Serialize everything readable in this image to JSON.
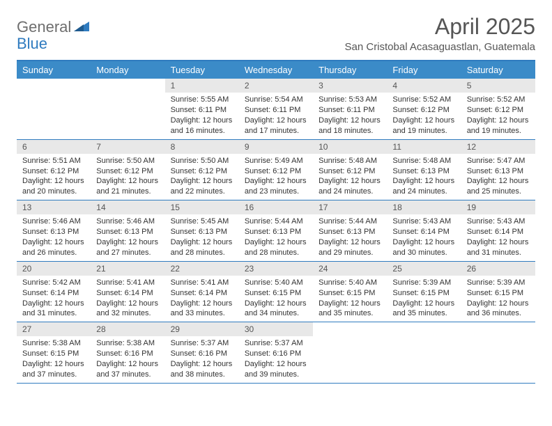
{
  "logo": {
    "part1": "General",
    "part2": "Blue"
  },
  "title": "April 2025",
  "location": "San Cristobal Acasaguastlan, Guatemala",
  "colors": {
    "header_bg": "#3b8bc8",
    "header_border": "#2f7bbf",
    "daynum_bg": "#e8e8e8",
    "text": "#333333",
    "title_text": "#555555",
    "logo_gray": "#6e6e6e",
    "logo_blue": "#2f7bbf",
    "background": "#ffffff"
  },
  "typography": {
    "title_fontsize": 32,
    "location_fontsize": 15,
    "header_fontsize": 13,
    "daynum_fontsize": 12,
    "body_fontsize": 11,
    "font_family": "Arial"
  },
  "day_headers": [
    "Sunday",
    "Monday",
    "Tuesday",
    "Wednesday",
    "Thursday",
    "Friday",
    "Saturday"
  ],
  "weeks": [
    [
      {
        "empty": true
      },
      {
        "empty": true
      },
      {
        "num": "1",
        "sunrise": "Sunrise: 5:55 AM",
        "sunset": "Sunset: 6:11 PM",
        "daylight": "Daylight: 12 hours and 16 minutes."
      },
      {
        "num": "2",
        "sunrise": "Sunrise: 5:54 AM",
        "sunset": "Sunset: 6:11 PM",
        "daylight": "Daylight: 12 hours and 17 minutes."
      },
      {
        "num": "3",
        "sunrise": "Sunrise: 5:53 AM",
        "sunset": "Sunset: 6:11 PM",
        "daylight": "Daylight: 12 hours and 18 minutes."
      },
      {
        "num": "4",
        "sunrise": "Sunrise: 5:52 AM",
        "sunset": "Sunset: 6:12 PM",
        "daylight": "Daylight: 12 hours and 19 minutes."
      },
      {
        "num": "5",
        "sunrise": "Sunrise: 5:52 AM",
        "sunset": "Sunset: 6:12 PM",
        "daylight": "Daylight: 12 hours and 19 minutes."
      }
    ],
    [
      {
        "num": "6",
        "sunrise": "Sunrise: 5:51 AM",
        "sunset": "Sunset: 6:12 PM",
        "daylight": "Daylight: 12 hours and 20 minutes."
      },
      {
        "num": "7",
        "sunrise": "Sunrise: 5:50 AM",
        "sunset": "Sunset: 6:12 PM",
        "daylight": "Daylight: 12 hours and 21 minutes."
      },
      {
        "num": "8",
        "sunrise": "Sunrise: 5:50 AM",
        "sunset": "Sunset: 6:12 PM",
        "daylight": "Daylight: 12 hours and 22 minutes."
      },
      {
        "num": "9",
        "sunrise": "Sunrise: 5:49 AM",
        "sunset": "Sunset: 6:12 PM",
        "daylight": "Daylight: 12 hours and 23 minutes."
      },
      {
        "num": "10",
        "sunrise": "Sunrise: 5:48 AM",
        "sunset": "Sunset: 6:12 PM",
        "daylight": "Daylight: 12 hours and 24 minutes."
      },
      {
        "num": "11",
        "sunrise": "Sunrise: 5:48 AM",
        "sunset": "Sunset: 6:13 PM",
        "daylight": "Daylight: 12 hours and 24 minutes."
      },
      {
        "num": "12",
        "sunrise": "Sunrise: 5:47 AM",
        "sunset": "Sunset: 6:13 PM",
        "daylight": "Daylight: 12 hours and 25 minutes."
      }
    ],
    [
      {
        "num": "13",
        "sunrise": "Sunrise: 5:46 AM",
        "sunset": "Sunset: 6:13 PM",
        "daylight": "Daylight: 12 hours and 26 minutes."
      },
      {
        "num": "14",
        "sunrise": "Sunrise: 5:46 AM",
        "sunset": "Sunset: 6:13 PM",
        "daylight": "Daylight: 12 hours and 27 minutes."
      },
      {
        "num": "15",
        "sunrise": "Sunrise: 5:45 AM",
        "sunset": "Sunset: 6:13 PM",
        "daylight": "Daylight: 12 hours and 28 minutes."
      },
      {
        "num": "16",
        "sunrise": "Sunrise: 5:44 AM",
        "sunset": "Sunset: 6:13 PM",
        "daylight": "Daylight: 12 hours and 28 minutes."
      },
      {
        "num": "17",
        "sunrise": "Sunrise: 5:44 AM",
        "sunset": "Sunset: 6:13 PM",
        "daylight": "Daylight: 12 hours and 29 minutes."
      },
      {
        "num": "18",
        "sunrise": "Sunrise: 5:43 AM",
        "sunset": "Sunset: 6:14 PM",
        "daylight": "Daylight: 12 hours and 30 minutes."
      },
      {
        "num": "19",
        "sunrise": "Sunrise: 5:43 AM",
        "sunset": "Sunset: 6:14 PM",
        "daylight": "Daylight: 12 hours and 31 minutes."
      }
    ],
    [
      {
        "num": "20",
        "sunrise": "Sunrise: 5:42 AM",
        "sunset": "Sunset: 6:14 PM",
        "daylight": "Daylight: 12 hours and 31 minutes."
      },
      {
        "num": "21",
        "sunrise": "Sunrise: 5:41 AM",
        "sunset": "Sunset: 6:14 PM",
        "daylight": "Daylight: 12 hours and 32 minutes."
      },
      {
        "num": "22",
        "sunrise": "Sunrise: 5:41 AM",
        "sunset": "Sunset: 6:14 PM",
        "daylight": "Daylight: 12 hours and 33 minutes."
      },
      {
        "num": "23",
        "sunrise": "Sunrise: 5:40 AM",
        "sunset": "Sunset: 6:15 PM",
        "daylight": "Daylight: 12 hours and 34 minutes."
      },
      {
        "num": "24",
        "sunrise": "Sunrise: 5:40 AM",
        "sunset": "Sunset: 6:15 PM",
        "daylight": "Daylight: 12 hours and 35 minutes."
      },
      {
        "num": "25",
        "sunrise": "Sunrise: 5:39 AM",
        "sunset": "Sunset: 6:15 PM",
        "daylight": "Daylight: 12 hours and 35 minutes."
      },
      {
        "num": "26",
        "sunrise": "Sunrise: 5:39 AM",
        "sunset": "Sunset: 6:15 PM",
        "daylight": "Daylight: 12 hours and 36 minutes."
      }
    ],
    [
      {
        "num": "27",
        "sunrise": "Sunrise: 5:38 AM",
        "sunset": "Sunset: 6:15 PM",
        "daylight": "Daylight: 12 hours and 37 minutes."
      },
      {
        "num": "28",
        "sunrise": "Sunrise: 5:38 AM",
        "sunset": "Sunset: 6:16 PM",
        "daylight": "Daylight: 12 hours and 37 minutes."
      },
      {
        "num": "29",
        "sunrise": "Sunrise: 5:37 AM",
        "sunset": "Sunset: 6:16 PM",
        "daylight": "Daylight: 12 hours and 38 minutes."
      },
      {
        "num": "30",
        "sunrise": "Sunrise: 5:37 AM",
        "sunset": "Sunset: 6:16 PM",
        "daylight": "Daylight: 12 hours and 39 minutes."
      },
      {
        "empty": true
      },
      {
        "empty": true
      },
      {
        "empty": true
      }
    ]
  ]
}
